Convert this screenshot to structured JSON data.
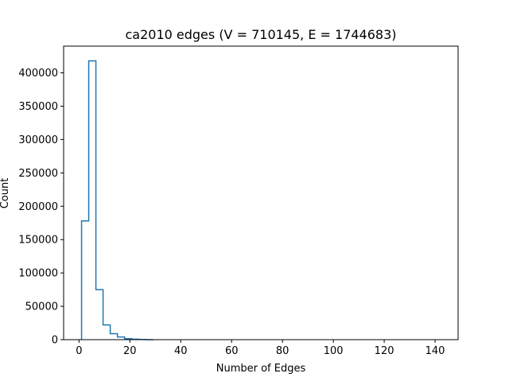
{
  "chart_data": {
    "type": "histogram",
    "title": "ca2010 edges (V = 710145, E = 1744683)",
    "xlabel": "Number of Edges",
    "ylabel": "Count",
    "xlim": [
      -6.05,
      149.05
    ],
    "ylim": [
      0,
      440000
    ],
    "xticks": [
      0,
      20,
      40,
      60,
      80,
      100,
      120,
      140
    ],
    "yticks": [
      0,
      50000,
      100000,
      150000,
      200000,
      250000,
      300000,
      350000,
      400000
    ],
    "grid": false,
    "histtype": "step",
    "bin_edges": [
      1.0,
      3.82,
      6.64,
      9.46,
      12.28,
      15.1,
      17.92,
      20.74,
      23.56,
      26.38,
      29.2
    ],
    "counts": [
      178000,
      418000,
      75000,
      22000,
      9000,
      4000,
      1500,
      800,
      300,
      0
    ],
    "line_color": "#1f77b4"
  }
}
